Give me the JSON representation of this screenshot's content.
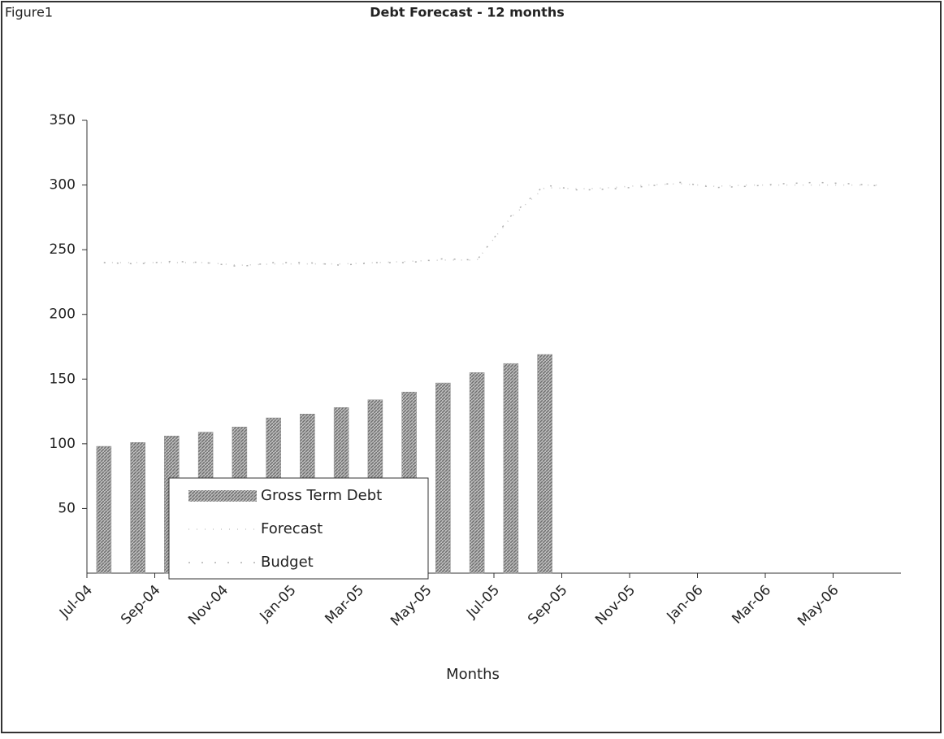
{
  "chart_data": {
    "type": "bar",
    "figure_label": "Figure1",
    "title": "Debt Forecast - 12 months",
    "x_label": "Months",
    "categories": [
      "Jul-04",
      null,
      "Sep-04",
      null,
      "Nov-04",
      null,
      "Jan-05",
      null,
      "Mar-05",
      null,
      "May-05",
      null,
      "Jul-05",
      null,
      "Sep-05",
      null,
      "Nov-05",
      null,
      "Jan-06",
      null,
      "Mar-06",
      null,
      "May-06",
      null
    ],
    "ylim": [
      0,
      350
    ],
    "yticks": [
      50,
      100,
      150,
      200,
      250,
      300,
      350
    ],
    "legend": "bottom-left",
    "series": [
      {
        "name": "Gross Term Debt",
        "type": "bar",
        "color": "#8c8c8c",
        "values": [
          98,
          101,
          106,
          109,
          113,
          120,
          123,
          128,
          134,
          140,
          147,
          155,
          162,
          169,
          null,
          null,
          null,
          null,
          null,
          null,
          null,
          null,
          null,
          null
        ]
      },
      {
        "name": "Forecast",
        "type": "line",
        "color": "#c8c8c8",
        "values": [
          240,
          240,
          240,
          240,
          238,
          239,
          239,
          239,
          240,
          241,
          242,
          242,
          275,
          298,
          297,
          298,
          300,
          301,
          299,
          300,
          300,
          300,
          300,
          300
        ]
      },
      {
        "name": "Budget",
        "type": "line",
        "color": "#b0b0b0",
        "values": [
          240,
          239,
          241,
          240,
          237,
          240,
          240,
          238,
          240,
          240,
          243,
          242,
          276,
          300,
          296,
          297,
          299,
          302,
          298,
          299,
          301,
          302,
          301,
          299
        ]
      }
    ]
  }
}
